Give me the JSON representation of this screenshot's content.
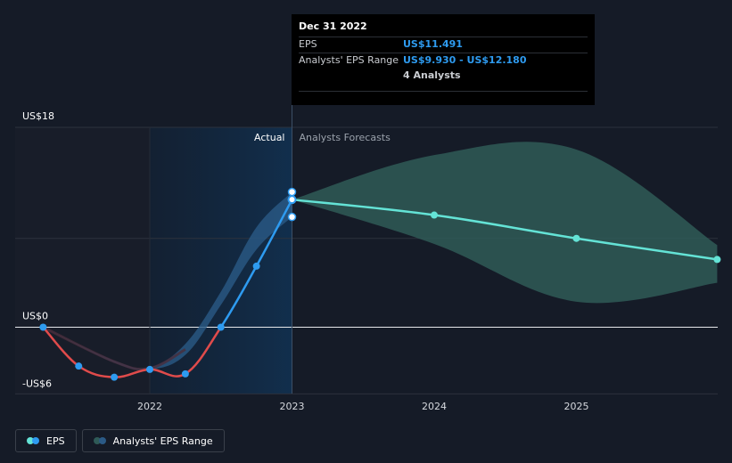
{
  "chart_data": {
    "type": "line",
    "y_unit_labels": {
      "top": "US$18",
      "zero": "US$0",
      "bottom": "-US$6"
    },
    "ylim": [
      -6,
      18
    ],
    "xlim": [
      2021.2,
      2025.99
    ],
    "x_ticks": [
      {
        "value": 2022,
        "label": "2022"
      },
      {
        "value": 2023,
        "label": "2023"
      },
      {
        "value": 2024,
        "label": "2024"
      },
      {
        "value": 2025,
        "label": "2025"
      }
    ],
    "regions": {
      "actual_label": "Actual",
      "forecast_label": "Analysts Forecasts",
      "divider_x": 2023
    },
    "series": [
      {
        "name": "EPS",
        "kind": "actual",
        "points": [
          {
            "x": 2021.25,
            "y": 0
          },
          {
            "x": 2021.5,
            "y": -3.5
          },
          {
            "x": 2021.75,
            "y": -4.5
          },
          {
            "x": 2022.0,
            "y": -3.8
          },
          {
            "x": 2022.25,
            "y": -4.2
          },
          {
            "x": 2022.5,
            "y": 0
          },
          {
            "x": 2022.75,
            "y": 5.5
          },
          {
            "x": 2023.0,
            "y": 11.491
          }
        ]
      },
      {
        "name": "EPS",
        "kind": "forecast",
        "points": [
          {
            "x": 2023.0,
            "y": 11.491
          },
          {
            "x": 2024.0,
            "y": 10.1
          },
          {
            "x": 2025.0,
            "y": 8.0
          },
          {
            "x": 2025.99,
            "y": 6.1
          }
        ]
      }
    ],
    "eps_range": {
      "name": "Analysts' EPS Range",
      "actual": [
        {
          "x": 2021.25,
          "low": 0,
          "high": 0
        },
        {
          "x": 2021.75,
          "low": -3.2,
          "high": -3.0
        },
        {
          "x": 2022.0,
          "low": -3.8,
          "high": -3.6
        },
        {
          "x": 2022.25,
          "low": -2.5,
          "high": -1.5
        },
        {
          "x": 2022.5,
          "low": 2.0,
          "high": 3.2
        },
        {
          "x": 2022.75,
          "low": 7.0,
          "high": 9.0
        },
        {
          "x": 2023.0,
          "low": 9.93,
          "high": 12.18
        }
      ],
      "forecast": [
        {
          "x": 2023.0,
          "low": 11.491,
          "high": 11.491
        },
        {
          "x": 2024.0,
          "low": 7.5,
          "high": 15.5
        },
        {
          "x": 2025.0,
          "low": 2.3,
          "high": 16.0
        },
        {
          "x": 2025.99,
          "low": 4.0,
          "high": 7.4
        }
      ]
    },
    "markers_range_ends": [
      {
        "x": 2023.0,
        "y": 12.18
      },
      {
        "x": 2023.0,
        "y": 9.93
      }
    ],
    "colors": {
      "eps_negative": "#e04b4b",
      "eps_positive": "#2e9bf0",
      "forecast_line": "#64e3d6",
      "forecast_band": "#2f5a57",
      "actual_band": "#2b5a86"
    }
  },
  "tooltip": {
    "date": "Dec 31 2022",
    "eps_label": "EPS",
    "eps_value": "US$11.491",
    "range_label": "Analysts' EPS Range",
    "range_value": "US$9.930 - US$12.180",
    "analysts": "4 Analysts"
  },
  "legend": {
    "eps": "EPS",
    "range": "Analysts' EPS Range"
  }
}
